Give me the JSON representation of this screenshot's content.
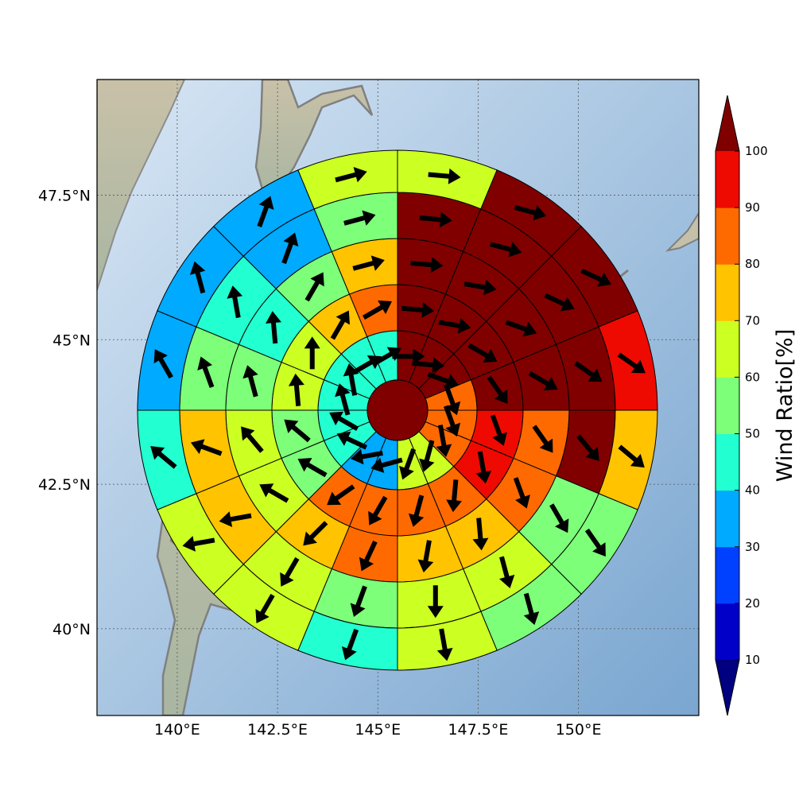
{
  "map": {
    "x_tick_labels": [
      "140°E",
      "142.5°E",
      "145°E",
      "147.5°E",
      "150°E"
    ],
    "y_tick_labels": [
      "47.5°N",
      "45°N",
      "42.5°N",
      "40°N"
    ],
    "x_tick_values": [
      140,
      142.5,
      145,
      147.5,
      150
    ],
    "y_tick_values": [
      47.5,
      45,
      42.5,
      40
    ],
    "lon_range": [
      138,
      153
    ],
    "lat_range": [
      38.5,
      49.5
    ],
    "gridlines": true,
    "basemap": "shaded-relief"
  },
  "colorbar": {
    "label": "Wind Ratio[%]",
    "tick_labels": [
      "10",
      "20",
      "30",
      "40",
      "50",
      "60",
      "70",
      "80",
      "90",
      "100"
    ],
    "bounds": [
      10,
      20,
      30,
      40,
      50,
      60,
      70,
      80,
      90,
      100
    ],
    "colors": [
      "#0000c8",
      "#0040ff",
      "#00aaff",
      "#22ffd0",
      "#7dff7a",
      "#ccff22",
      "#ffc300",
      "#ff6a00",
      "#ee0a00"
    ],
    "under_color": "#000080",
    "over_color": "#800000",
    "extend": "both"
  },
  "chart_data": {
    "type": "polar-sector-grid",
    "center_cell_color": "#800000",
    "sectors_per_ring": 16,
    "sector_order": "clockwise from north, sector 0 spans 0°-22.5°",
    "rings": [
      {
        "colors": [
          "#800000",
          "#800000",
          "#800000",
          "#ff6a00",
          "#ff6a00",
          "#ff6a00",
          "#ccff22",
          "#ccff22",
          "#00aaff",
          "#00aaff",
          "#22ffd0",
          "#22ffd0",
          "#22ffd0",
          "#22ffd0",
          "#22ffd0",
          "#22ffd0"
        ],
        "arrow_deg": [
          90,
          95,
          110,
          160,
          160,
          170,
          195,
          200,
          255,
          260,
          295,
          300,
          345,
          350,
          60,
          60
        ]
      },
      {
        "colors": [
          "#800000",
          "#800000",
          "#800000",
          "#800000",
          "#ee0a00",
          "#ee0a00",
          "#ff6a00",
          "#ff6a00",
          "#ff6a00",
          "#ff6a00",
          "#7dff7a",
          "#7dff7a",
          "#ccff22",
          "#ccff22",
          "#ffc300",
          "#ff6a00"
        ],
        "arrow_deg": [
          95,
          100,
          120,
          145,
          160,
          170,
          185,
          195,
          210,
          235,
          300,
          310,
          355,
          0,
          30,
          60
        ]
      },
      {
        "colors": [
          "#800000",
          "#800000",
          "#800000",
          "#800000",
          "#ff6a00",
          "#ff6a00",
          "#ffc300",
          "#ffc300",
          "#ff6a00",
          "#ffc300",
          "#ccff22",
          "#ccff22",
          "#7dff7a",
          "#22ffd0",
          "#7dff7a",
          "#ffc300"
        ],
        "arrow_deg": [
          95,
          100,
          110,
          120,
          145,
          160,
          175,
          190,
          205,
          225,
          300,
          320,
          345,
          355,
          30,
          75
        ]
      },
      {
        "colors": [
          "#800000",
          "#800000",
          "#800000",
          "#800000",
          "#800000",
          "#7dff7a",
          "#ccff22",
          "#ccff22",
          "#7dff7a",
          "#ccff22",
          "#ffc300",
          "#ffc300",
          "#7dff7a",
          "#22ffd0",
          "#00aaff",
          "#7dff7a"
        ],
        "arrow_deg": [
          95,
          105,
          115,
          125,
          140,
          150,
          165,
          180,
          200,
          210,
          260,
          290,
          340,
          350,
          20,
          75
        ]
      },
      {
        "colors": [
          "#ccff22",
          "#800000",
          "#800000",
          "#ee0a00",
          "#ffc300",
          "#7dff7a",
          "#7dff7a",
          "#ccff22",
          "#22ffd0",
          "#ccff22",
          "#ccff22",
          "#22ffd0",
          "#00aaff",
          "#00aaff",
          "#00aaff",
          "#ccff22"
        ],
        "arrow_deg": [
          95,
          105,
          115,
          125,
          130,
          145,
          165,
          170,
          200,
          210,
          260,
          310,
          330,
          345,
          20,
          75
        ]
      }
    ]
  }
}
